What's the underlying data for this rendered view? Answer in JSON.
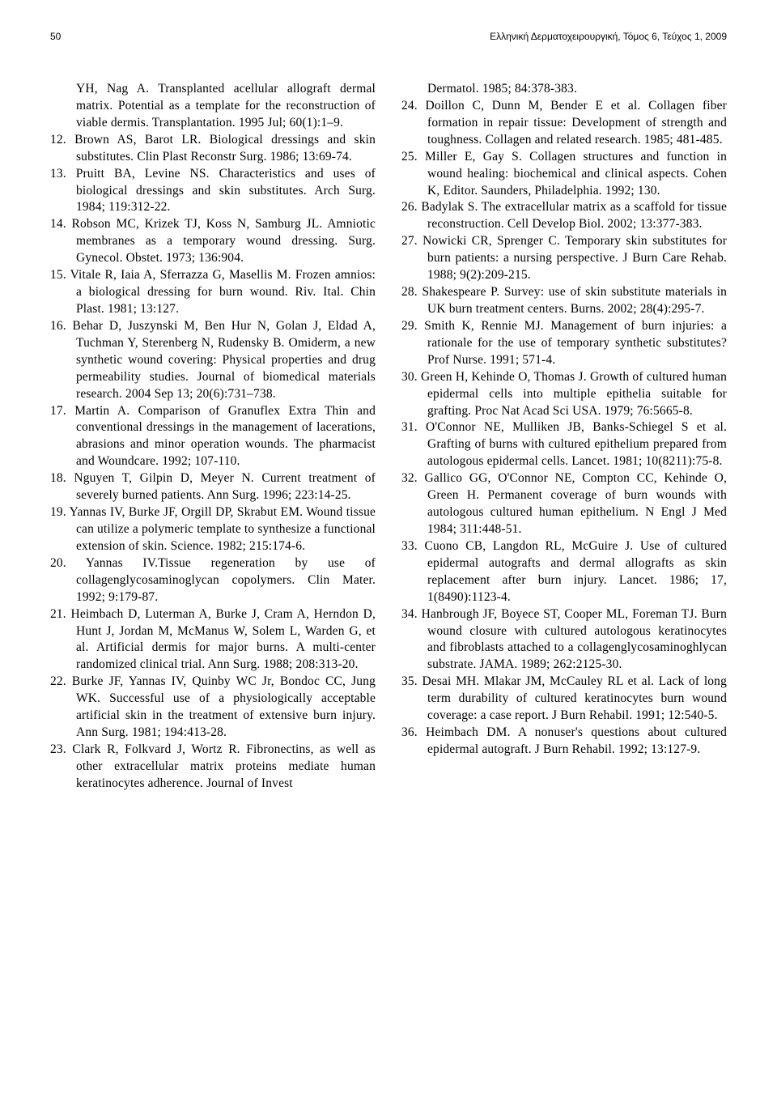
{
  "header": {
    "page_number": "50",
    "journal": "Ελληνική Δερματοχειρουργική, Τόμος 6, Τεύχος 1, 2009"
  },
  "left_column": {
    "continuation": "YH, Nag A. Transplanted acellular allograft dermal matrix. Potential as a template for the reconstruction of viable dermis. Transplantation. 1995 Jul; 60(1):1–9.",
    "refs": [
      {
        "n": "12.",
        "t": "Brown AS, Barot LR. Biological dressings and skin substitutes. Clin Plast Reconstr Surg. 1986; 13:69-74."
      },
      {
        "n": "13.",
        "t": "Pruitt BA, Levine NS. Characteristics and uses of biological dressings and skin substitutes. Arch Surg. 1984; 119:312-22."
      },
      {
        "n": "14.",
        "t": "Robson MC, Krizek TJ, Koss N, Samburg JL. Amniotic membranes as a temporary wound dressing. Surg. Gynecol. Obstet. 1973; 136:904."
      },
      {
        "n": "15.",
        "t": "Vitale R, Iaia A, Sferrazza G, Masellis M. Frozen amnios: a biological dressing for burn wound. Riv. Ital. Chin Plast. 1981; 13:127."
      },
      {
        "n": "16.",
        "t": "Behar D, Juszynski M, Ben Hur N, Golan J, Eldad A, Tuchman Y, Sterenberg N, Rudensky B. Omiderm, a new synthetic wound covering: Physical properties and drug permeability studies. Journal of biomedical materials research. 2004 Sep 13; 20(6):731–738."
      },
      {
        "n": "17.",
        "t": "Martin A. Comparison of Granuflex Extra Thin and conventional dressings in the management of lacerations, abrasions and minor operation wounds. The pharmacist and Woundcare. 1992; 107-110."
      },
      {
        "n": "18.",
        "t": "Nguyen T, Gilpin D, Meyer N. Current treatment of severely burned patients. Ann Surg. 1996; 223:14-25."
      },
      {
        "n": "19.",
        "t": "Yannas IV, Burke JF, Orgill DP, Skrabut EM. Wound tissue can utilize a polymeric template to synthesize a functional extension of skin. Science. 1982; 215:174-6."
      },
      {
        "n": "20.",
        "t": "Yannas IV.Tissue regeneration by use of collagenglycosaminoglycan copolymers. Clin Mater. 1992; 9:179-87."
      },
      {
        "n": "21.",
        "t": "Heimbach D, Luterman A, Burke J, Cram A, Herndon D, Hunt J, Jordan M, McManus W, Solem L, Warden G, et al. Artificial dermis for major burns. A multi-center randomized clinical trial. Ann Surg. 1988; 208:313-20."
      },
      {
        "n": "22.",
        "t": "Burke JF, Yannas IV, Quinby WC Jr, Bondoc CC, Jung WK. Successful use of a physiologically acceptable artificial skin in the treatment of extensive burn injury. Ann Surg. 1981; 194:413-28."
      },
      {
        "n": "23.",
        "t": "Clark R, Folkvard J, Wortz R. Fibronectins, as well as other extracellular matrix proteins mediate human keratinocytes adherence. Journal of Invest"
      }
    ]
  },
  "right_column": {
    "continuation": "Dermatol. 1985; 84:378-383.",
    "refs": [
      {
        "n": "24.",
        "t": "Doillon C, Dunn M, Bender E et al. Collagen fiber formation in repair tissue: Development of strength and toughness. Collagen and related research. 1985; 481-485."
      },
      {
        "n": "25.",
        "t": "Miller E, Gay S. Collagen structures and function in wound healing: biochemical and clinical aspects. Cohen K, Editor. Saunders, Philadelphia. 1992; 130."
      },
      {
        "n": "26.",
        "t": "Badylak S. The extracellular matrix as a scaffold for tissue reconstruction. Cell Develop Biol. 2002; 13:377-383."
      },
      {
        "n": "27.",
        "t": "Nowicki CR, Sprenger C. Temporary skin substitutes for burn patients: a nursing perspective. J Burn Care Rehab. 1988; 9(2):209-215."
      },
      {
        "n": "28.",
        "t": "Shakespeare P. Survey: use of skin substitute materials in UK burn treatment centers. Burns. 2002; 28(4):295-7."
      },
      {
        "n": "29.",
        "t": "Smith K, Rennie MJ. Management of burn injuries: a rationale for the use of temporary synthetic substitutes? Prof Nurse. 1991; 571-4."
      },
      {
        "n": "30.",
        "t": "Green H, Kehinde O, Thomas J. Growth of cultured human epidermal cells into multiple epithelia suitable for grafting. Proc Nat Acad Sci USA. 1979; 76:5665-8."
      },
      {
        "n": "31.",
        "t": "O'Connor NE, Mulliken JB, Banks-Schiegel S et al. Grafting of burns with cultured epithelium prepared from autologous epidermal cells. Lancet. 1981; 10(8211):75-8."
      },
      {
        "n": "32.",
        "t": "Gallico GG, O'Connor NE, Compton CC, Kehinde O, Green H. Permanent coverage of burn wounds with autologous cultured human epithelium. N Engl J Med 1984; 311:448-51."
      },
      {
        "n": "33.",
        "t": "Cuono CB, Langdon RL, McGuire J. Use of cultured epidermal autografts and dermal allografts as skin replacement after burn injury. Lancet. 1986; 17, 1(8490):1123-4."
      },
      {
        "n": "34.",
        "t": "Hanbrough JF, Boyece ST, Cooper ML, Foreman TJ. Burn wound closure with cultured autologous keratinocytes and fibroblasts attached to a collagenglycosaminoghlycan substrate. JAMA. 1989; 262:2125-30."
      },
      {
        "n": "35.",
        "t": "Desai MH. Mlakar JM, McCauley RL et al. Lack of long term durability of cultured keratinocytes burn wound coverage: a case report. J Burn Rehabil. 1991; 12:540-5."
      },
      {
        "n": "36.",
        "t": "Heimbach DM. A nonuser's questions about cultured epidermal autograft. J Burn Rehabil. 1992; 13:127-9."
      }
    ]
  }
}
